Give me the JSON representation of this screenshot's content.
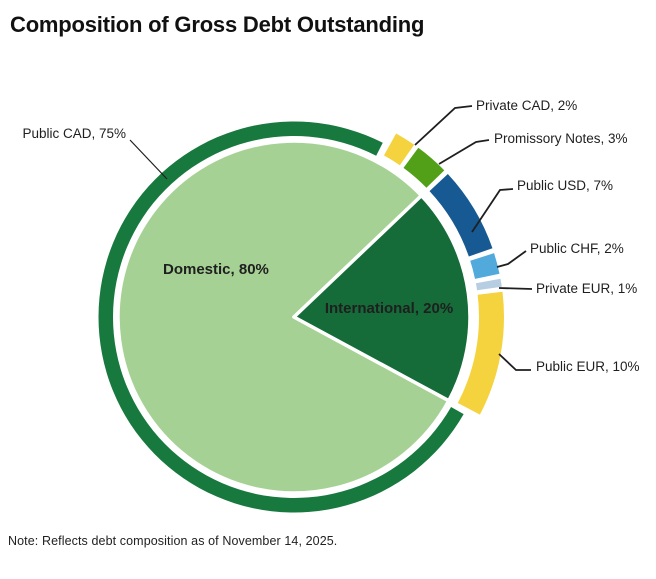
{
  "title": "Composition of Gross Debt Outstanding",
  "note": "Note: Reflects debt composition as of November 14, 2025.",
  "styles": {
    "background": "#ffffff",
    "title_color": "#111111",
    "label_color": "#1f1f1f",
    "leader_color": "#1f1f1f",
    "separator_color": "#ffffff"
  },
  "chart_data": {
    "type": "pie",
    "title": "Composition of Gross Debt Outstanding",
    "note": "Note: Reflects debt composition as of November 14, 2025.",
    "unit": "%",
    "start_angle_deg": 118.4,
    "legend_position": "none",
    "inner_ring": {
      "description": "inner pie, debt by market",
      "slices": [
        {
          "name": "Domestic",
          "value": 80,
          "label": "Domestic, 80%",
          "color": "#A5D294",
          "label_color": "#1a1a1a"
        },
        {
          "name": "International",
          "value": 20,
          "label": "International, 20%",
          "color": "#156C39",
          "label_color": "#ffffff"
        }
      ]
    },
    "outer_ring": {
      "description": "outer ring, debt by instrument and currency",
      "slices": [
        {
          "name": "Public CAD",
          "value": 75,
          "label": "Public CAD, 75%",
          "color": "#17793E"
        },
        {
          "name": "Private CAD",
          "value": 2,
          "label": "Private CAD, 2%",
          "color": "#F5D33E"
        },
        {
          "name": "Promissory Notes",
          "value": 3,
          "label": "Promissory Notes, 3%",
          "color": "#52A017"
        },
        {
          "name": "Public USD",
          "value": 7,
          "label": "Public USD, 7%",
          "color": "#175A93"
        },
        {
          "name": "Public CHF",
          "value": 2,
          "label": "Public CHF, 2%",
          "color": "#51A9DC"
        },
        {
          "name": "Private EUR",
          "value": 1,
          "label": "Private EUR, 1%",
          "color": "#B7CDE2"
        },
        {
          "name": "Public EUR",
          "value": 10,
          "label": "Public EUR, 10%",
          "color": "#F5D33E"
        }
      ]
    }
  }
}
